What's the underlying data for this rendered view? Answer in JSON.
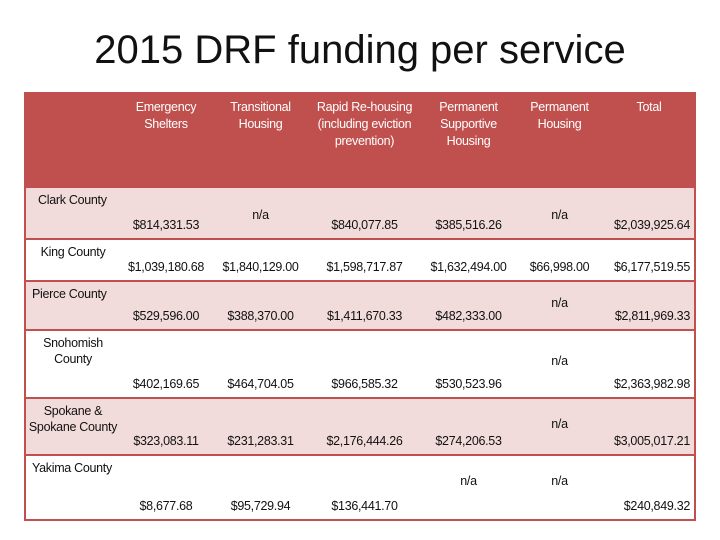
{
  "title": "2015 DRF funding per service",
  "headers": [
    "",
    "Emergency Shelters",
    "Transitional Housing",
    "Rapid Re-housing (including eviction prevention)",
    "Permanent Supportive Housing",
    "Permanent Housing",
    "Total"
  ],
  "rows": [
    {
      "county": "Clark County",
      "values": [
        "$814,331.53",
        "n/a",
        "$840,077.85",
        "$385,516.26",
        "n/a",
        "$2,039,925.64"
      ]
    },
    {
      "county": "King County",
      "values": [
        "$1,039,180.68",
        "$1,840,129.00",
        "$1,598,717.87",
        "$1,632,494.00",
        "$66,998.00",
        "$6,177,519.55"
      ]
    },
    {
      "county": "Pierce County",
      "values": [
        "$529,596.00",
        "$388,370.00",
        "$1,411,670.33",
        "$482,333.00",
        "n/a",
        "$2,811,969.33"
      ]
    },
    {
      "county": "Snohomish County",
      "values": [
        "$402,169.65",
        "$464,704.05",
        "$966,585.32",
        "$530,523.96",
        "n/a",
        "$2,363,982.98"
      ]
    },
    {
      "county": "Spokane & Spokane County",
      "values": [
        "$323,083.11",
        "$231,283.31",
        "$2,176,444.26",
        "$274,206.53",
        "n/a",
        "$3,005,017.21"
      ]
    },
    {
      "county": "Yakima County",
      "values": [
        "$8,677.68",
        "$95,729.94",
        "$136,441.70",
        "n/a",
        "n/a",
        "$240,849.32"
      ]
    }
  ]
}
